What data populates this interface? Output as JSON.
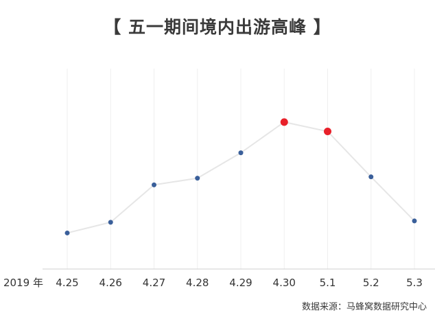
{
  "chart_data": {
    "type": "line",
    "title": "【 五一期间境内出游高峰 】",
    "year_label": "2019 年",
    "categories": [
      "4.25",
      "4.26",
      "4.27",
      "4.28",
      "4.29",
      "4.30",
      "5.1",
      "5.2",
      "5.3"
    ],
    "series": [
      {
        "values": [
          27,
          35,
          63,
          68,
          87,
          110,
          103,
          69,
          36
        ]
      }
    ],
    "highlight_indices": [
      5,
      6
    ],
    "ylim": [
      0,
      150
    ],
    "grid": "vertical",
    "colors": {
      "line": "#e6e6e6",
      "point": "#3a5f9a",
      "highlight": "#e8202a",
      "grid": "#efefef",
      "axis": "#cfcfcf"
    }
  },
  "source": "数据来源：马蜂窝数据研究中心"
}
